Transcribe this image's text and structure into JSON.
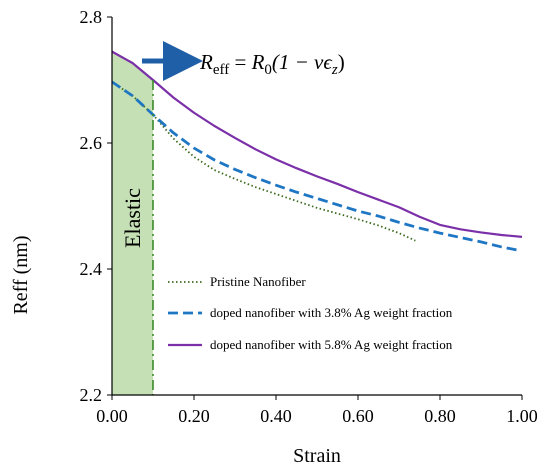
{
  "chart_data": {
    "type": "line",
    "title": "",
    "xlabel": "Strain",
    "ylabel": "Reff (nm)",
    "xlim": [
      0,
      1
    ],
    "ylim": [
      2.2,
      2.8
    ],
    "xticks": [
      "0.00",
      "0.20",
      "0.40",
      "0.60",
      "0.80",
      "1.00"
    ],
    "yticks": [
      "2.2",
      "2.4",
      "2.6",
      "2.8"
    ],
    "grid": false,
    "legend_position": "bottom-right",
    "annotation_elastic": "Elastic",
    "elastic_limit_strain": 0.1,
    "equation": {
      "lhs_base": "R",
      "lhs_sub": "eff",
      "mid": " = ",
      "rhs_base": "R",
      "rhs_sub": "0",
      "rhs_tail": "(1 − νϵ",
      "rhs_sub2": "z",
      "rhs_end": ")"
    },
    "colors": {
      "pristine": "#3a6b1e",
      "doped38": "#1f77c4",
      "doped58": "#7b2fa8",
      "elastic_fill": "#c5e0b4",
      "elastic_line": "#3a8a2a",
      "arrow": "#1f5fa8"
    },
    "series": [
      {
        "name": "Pristine Nanofiber",
        "style": "dotted",
        "x": [
          0.0,
          0.05,
          0.1,
          0.15,
          0.2,
          0.25,
          0.3,
          0.35,
          0.4,
          0.45,
          0.5,
          0.55,
          0.6,
          0.65,
          0.7,
          0.74
        ],
        "y": [
          2.697,
          2.675,
          2.645,
          2.607,
          2.578,
          2.557,
          2.543,
          2.53,
          2.519,
          2.508,
          2.497,
          2.488,
          2.479,
          2.469,
          2.457,
          2.445
        ]
      },
      {
        "name": "doped nanofiber with 3.8% Ag weight fraction",
        "style": "dashed",
        "x": [
          0.0,
          0.05,
          0.1,
          0.15,
          0.2,
          0.25,
          0.3,
          0.35,
          0.4,
          0.45,
          0.5,
          0.55,
          0.6,
          0.65,
          0.7,
          0.75,
          0.8,
          0.85,
          0.9,
          0.95,
          0.99
        ],
        "y": [
          2.697,
          2.675,
          2.645,
          2.616,
          2.592,
          2.573,
          2.558,
          2.545,
          2.533,
          2.522,
          2.512,
          2.502,
          2.492,
          2.484,
          2.474,
          2.465,
          2.457,
          2.45,
          2.443,
          2.435,
          2.43
        ]
      },
      {
        "name": "doped nanofiber with 5.8% Ag weight fraction",
        "style": "solid",
        "x": [
          0.0,
          0.05,
          0.1,
          0.15,
          0.2,
          0.25,
          0.3,
          0.35,
          0.4,
          0.45,
          0.5,
          0.55,
          0.6,
          0.65,
          0.7,
          0.75,
          0.8,
          0.85,
          0.9,
          0.95,
          1.0
        ],
        "y": [
          2.745,
          2.727,
          2.7,
          2.672,
          2.648,
          2.627,
          2.608,
          2.59,
          2.574,
          2.56,
          2.547,
          2.535,
          2.522,
          2.51,
          2.498,
          2.483,
          2.47,
          2.463,
          2.458,
          2.454,
          2.451
        ]
      }
    ]
  }
}
